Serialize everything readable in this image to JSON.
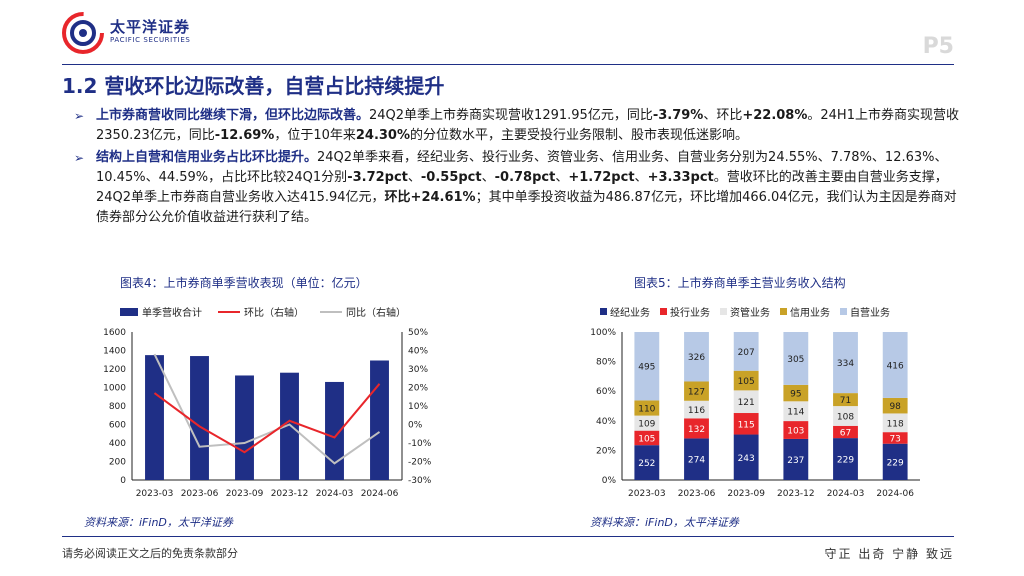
{
  "header": {
    "logo_cn": "太平洋证券",
    "logo_en": "PACIFIC SECURITIES",
    "page_number": "P5"
  },
  "section": {
    "title": "1.2 营收环比边际改善，自营占比持续提升"
  },
  "bullets": [
    {
      "lead": "上市券商营收同比继续下滑，但环比边际改善。",
      "t1": "24Q2单季上市券商实现营收1291.95亿元，同比",
      "v1": "-3.79%",
      "t2": "、环比",
      "v2": "+22.08%",
      "t3": "。24H1上市券商实现营收2350.23亿元，同比",
      "v3": "-12.69%",
      "t4": "，位于10年来",
      "v4": "24.30%",
      "t5": "的分位数水平，主要受投行业务限制、股市表现低迷影响。"
    },
    {
      "lead": "结构上自营和信用业务占比环比提升。",
      "t1": "24Q2单季来看，经纪业务、投行业务、资管业务、信用业务、自营业务分别为24.55%、7.78%、12.63%、10.45%、44.59%，占比环比较24Q1分别",
      "v1": "-3.72pct",
      "s1": "、",
      "v2": "-0.55pct",
      "s2": "、",
      "v3": "-0.78pct",
      "s3": "、",
      "v4": "+1.72pct",
      "s4": "、",
      "v5": "+3.33pct",
      "t2": "。营收环比的改善主要由自营业务支撑，24Q2单季上市券商自营业务收入达415.94亿元，",
      "v6": "环比+24.61%",
      "t3": "；其中单季投资收益为486.87亿元，环比增加466.04亿元，我们认为主因是券商对债券部分公允价值收益进行获利了结。"
    }
  ],
  "figure4": {
    "title": "图表4：上市券商单季营收表现（单位：亿元）",
    "source": "资料来源：iFinD，太平洋证券",
    "legend": [
      "单季营收合计",
      "环比（右轴）",
      "同比（右轴）"
    ]
  },
  "figure5": {
    "title": "图表5：上市券商单季主营业务收入结构",
    "source": "资料来源：iFinD，太平洋证券",
    "legend": [
      "经纪业务",
      "投行业务",
      "资管业务",
      "信用业务",
      "自营业务"
    ]
  },
  "chart_data": [
    {
      "type": "bar",
      "title": "上市券商单季营收表现（单位：亿元）",
      "categories": [
        "2023-03",
        "2023-06",
        "2023-09",
        "2023-12",
        "2024-03",
        "2024-06"
      ],
      "series": [
        {
          "name": "单季营收合计",
          "kind": "bar",
          "axis": "left",
          "values": [
            1350,
            1340,
            1130,
            1160,
            1060,
            1292
          ]
        },
        {
          "name": "环比（右轴）",
          "kind": "line",
          "axis": "right",
          "values": [
            17,
            -1,
            -15,
            2,
            -7,
            22
          ]
        },
        {
          "name": "同比（右轴）",
          "kind": "line",
          "axis": "right",
          "values": [
            38,
            -12,
            -10,
            0,
            -21,
            -4
          ]
        }
      ],
      "y_left": {
        "min": 0,
        "max": 1600,
        "ticks": [
          0,
          200,
          400,
          600,
          800,
          1000,
          1200,
          1400,
          1600
        ]
      },
      "y_right": {
        "min": -30,
        "max": 50,
        "ticks": [
          "50%",
          "40%",
          "30%",
          "20%",
          "10%",
          "0%",
          "-10%",
          "-20%",
          "-30%"
        ]
      },
      "colors": {
        "bar": "#1f2f86",
        "mom": "#e8262b",
        "yoy": "#bfbfbf"
      }
    },
    {
      "type": "bar",
      "stacked": "percent",
      "title": "上市券商单季主营业务收入结构",
      "categories": [
        "2023-03",
        "2023-06",
        "2023-09",
        "2023-12",
        "2024-03",
        "2024-06"
      ],
      "series": [
        {
          "name": "经纪业务",
          "values": [
            252,
            274,
            243,
            237,
            229,
            229
          ],
          "color": "#1f2f86",
          "label_color": "#ffffff"
        },
        {
          "name": "投行业务",
          "values": [
            105,
            132,
            115,
            103,
            67,
            73
          ],
          "color": "#e8262b",
          "label_color": "#ffffff"
        },
        {
          "name": "资管业务",
          "values": [
            109,
            116,
            121,
            114,
            108,
            118
          ],
          "color": "#e6e6e6",
          "label_color": "#222222"
        },
        {
          "name": "信用业务",
          "values": [
            110,
            127,
            105,
            95,
            71,
            98
          ],
          "color": "#c9a227",
          "label_color": "#222222"
        },
        {
          "name": "自营业务",
          "values": [
            495,
            326,
            207,
            305,
            334,
            416
          ],
          "color": "#b7c9e6",
          "label_color": "#222222"
        }
      ],
      "y_ticks": [
        "0%",
        "20%",
        "40%",
        "60%",
        "80%",
        "100%"
      ]
    }
  ],
  "footer": {
    "disclaimer": "请务必阅读正文之后的免责条款部分",
    "slogan": "守正 出奇 宁静 致远"
  }
}
